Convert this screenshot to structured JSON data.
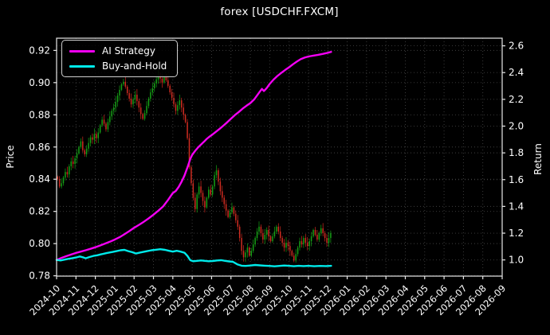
{
  "title": "forex [USDCHF.FXCM]",
  "legend": {
    "items": [
      {
        "label": "AI Strategy",
        "color": "#f400f4"
      },
      {
        "label": "Buy-and-Hold",
        "color": "#00eaea"
      }
    ]
  },
  "axes": {
    "left_label": "Price",
    "right_label": "Return",
    "price_ticks": [
      0.78,
      0.8,
      0.82,
      0.84,
      0.86,
      0.88,
      0.9,
      0.92
    ],
    "return_ticks": [
      1.0,
      1.2,
      1.4,
      1.6,
      1.8,
      2.0,
      2.2,
      2.4,
      2.6
    ],
    "x_tick_labels": [
      "2024-10",
      "2024-11",
      "2024-12",
      "2025-01",
      "2025-02",
      "2025-03",
      "2025-04",
      "2025-05",
      "2025-06",
      "2025-07",
      "2025-08",
      "2025-09",
      "2025-10",
      "2025-11",
      "2025-12",
      "2026-01",
      "2026-02",
      "2026-03",
      "2026-04",
      "2026-05",
      "2026-06",
      "2026-07",
      "2026-08",
      "2026-09"
    ],
    "price_range": [
      0.7798,
      0.9276
    ],
    "return_range": [
      0.879,
      2.657
    ]
  },
  "chart_data": {
    "type": "candlestick",
    "title": "forex [USDCHF.FXCM]",
    "xlabel": "",
    "ylabel_left": "Price",
    "ylabel_right": "Return",
    "grid": true,
    "legend_position": "upper left",
    "x_unit": "months since 2024-10",
    "data_span_months": [
      0,
      14.17
    ],
    "colors": {
      "up": "#15a015",
      "down": "#cf2b20",
      "ai_strategy": "#f400f4",
      "buy_and_hold": "#00eaea",
      "grid": "#3f3f3f",
      "spine": "#e8e8e8",
      "background": "#000000",
      "text": "#ffffff"
    },
    "candles": {
      "per_month": 10,
      "first_open": 0.8415,
      "closes": [
        0.84,
        0.8355,
        0.8375,
        0.841,
        0.8445,
        0.843,
        0.848,
        0.851,
        0.8495,
        0.853,
        0.856,
        0.86,
        0.8635,
        0.858,
        0.8555,
        0.859,
        0.8625,
        0.866,
        0.8645,
        0.868,
        0.8655,
        0.869,
        0.8735,
        0.877,
        0.8745,
        0.871,
        0.8755,
        0.879,
        0.8825,
        0.8845,
        0.888,
        0.892,
        0.8955,
        0.899,
        0.9005,
        0.8975,
        0.8935,
        0.89,
        0.8865,
        0.8895,
        0.8925,
        0.8885,
        0.8845,
        0.8805,
        0.8775,
        0.881,
        0.8855,
        0.89,
        0.894,
        0.8965,
        0.8995,
        0.902,
        0.9045,
        0.9025,
        0.9,
        0.9035,
        0.9015,
        0.898,
        0.894,
        0.8905,
        0.8865,
        0.8825,
        0.886,
        0.889,
        0.8845,
        0.88,
        0.8755,
        0.8655,
        0.8475,
        0.8375,
        0.8285,
        0.8215,
        0.8305,
        0.8355,
        0.8315,
        0.8265,
        0.8225,
        0.8285,
        0.8335,
        0.8305,
        0.8355,
        0.8425,
        0.8455,
        0.8385,
        0.8325,
        0.8285,
        0.8245,
        0.8205,
        0.8165,
        0.8195,
        0.8225,
        0.8185,
        0.8145,
        0.8105,
        0.8035,
        0.7955,
        0.7915,
        0.7945,
        0.7975,
        0.7925,
        0.7955,
        0.7995,
        0.8035,
        0.8075,
        0.8105,
        0.8065,
        0.8025,
        0.8055,
        0.8085,
        0.8045,
        0.8015,
        0.8045,
        0.8075,
        0.8105,
        0.8075,
        0.8035,
        0.8005,
        0.7975,
        0.8005,
        0.7985,
        0.7955,
        0.7925,
        0.7895,
        0.7935,
        0.7975,
        0.8015,
        0.7995,
        0.8035,
        0.8005,
        0.7985,
        0.8015,
        0.8045,
        0.8085,
        0.8055,
        0.8025,
        0.8065,
        0.8095,
        0.8065,
        0.8035,
        0.8005,
        0.8035,
        0.8065
      ]
    },
    "series": [
      {
        "name": "AI Strategy",
        "axis": "return",
        "color": "#f400f4",
        "points": [
          [
            0,
            1.0
          ],
          [
            0.25,
            1.015
          ],
          [
            0.5,
            1.028
          ],
          [
            0.75,
            1.04
          ],
          [
            1,
            1.052
          ],
          [
            1.25,
            1.062
          ],
          [
            1.5,
            1.072
          ],
          [
            1.75,
            1.083
          ],
          [
            2,
            1.095
          ],
          [
            2.25,
            1.108
          ],
          [
            2.5,
            1.122
          ],
          [
            2.75,
            1.136
          ],
          [
            3,
            1.152
          ],
          [
            3.25,
            1.17
          ],
          [
            3.5,
            1.192
          ],
          [
            3.75,
            1.215
          ],
          [
            4,
            1.24
          ],
          [
            4.25,
            1.262
          ],
          [
            4.5,
            1.285
          ],
          [
            4.75,
            1.31
          ],
          [
            5,
            1.338
          ],
          [
            5.25,
            1.368
          ],
          [
            5.5,
            1.4
          ],
          [
            5.75,
            1.448
          ],
          [
            6,
            1.5
          ],
          [
            6.15,
            1.515
          ],
          [
            6.3,
            1.545
          ],
          [
            6.45,
            1.585
          ],
          [
            6.6,
            1.63
          ],
          [
            6.75,
            1.69
          ],
          [
            6.9,
            1.755
          ],
          [
            7,
            1.785
          ],
          [
            7.15,
            1.815
          ],
          [
            7.3,
            1.84
          ],
          [
            7.45,
            1.862
          ],
          [
            7.6,
            1.882
          ],
          [
            7.75,
            1.905
          ],
          [
            7.9,
            1.922
          ],
          [
            8,
            1.932
          ],
          [
            8.2,
            1.955
          ],
          [
            8.4,
            1.978
          ],
          [
            8.6,
            2.002
          ],
          [
            8.8,
            2.028
          ],
          [
            9,
            2.055
          ],
          [
            9.2,
            2.082
          ],
          [
            9.4,
            2.105
          ],
          [
            9.6,
            2.13
          ],
          [
            9.8,
            2.152
          ],
          [
            10,
            2.172
          ],
          [
            10.2,
            2.2
          ],
          [
            10.35,
            2.23
          ],
          [
            10.5,
            2.26
          ],
          [
            10.6,
            2.278
          ],
          [
            10.7,
            2.262
          ],
          [
            10.85,
            2.285
          ],
          [
            11,
            2.315
          ],
          [
            11.2,
            2.348
          ],
          [
            11.4,
            2.375
          ],
          [
            11.6,
            2.398
          ],
          [
            11.8,
            2.42
          ],
          [
            12,
            2.44
          ],
          [
            12.2,
            2.462
          ],
          [
            12.4,
            2.482
          ],
          [
            12.6,
            2.5
          ],
          [
            12.8,
            2.512
          ],
          [
            13,
            2.52
          ],
          [
            13.25,
            2.527
          ],
          [
            13.5,
            2.533
          ],
          [
            13.75,
            2.54
          ],
          [
            14,
            2.548
          ],
          [
            14.17,
            2.555
          ]
        ]
      },
      {
        "name": "Buy-and-Hold",
        "axis": "return",
        "color": "#00eaea",
        "points": [
          [
            0,
            1.0
          ],
          [
            0.2,
            0.996
          ],
          [
            0.4,
            1.002
          ],
          [
            0.6,
            1.008
          ],
          [
            0.8,
            1.012
          ],
          [
            1,
            1.018
          ],
          [
            1.2,
            1.026
          ],
          [
            1.35,
            1.02
          ],
          [
            1.5,
            1.012
          ],
          [
            1.7,
            1.022
          ],
          [
            1.9,
            1.03
          ],
          [
            2.1,
            1.035
          ],
          [
            2.3,
            1.042
          ],
          [
            2.6,
            1.052
          ],
          [
            2.9,
            1.06
          ],
          [
            3.1,
            1.066
          ],
          [
            3.3,
            1.072
          ],
          [
            3.5,
            1.075
          ],
          [
            3.7,
            1.066
          ],
          [
            3.9,
            1.058
          ],
          [
            4.1,
            1.048
          ],
          [
            4.3,
            1.055
          ],
          [
            4.6,
            1.064
          ],
          [
            4.9,
            1.072
          ],
          [
            5.1,
            1.076
          ],
          [
            5.35,
            1.08
          ],
          [
            5.6,
            1.075
          ],
          [
            5.8,
            1.068
          ],
          [
            6,
            1.062
          ],
          [
            6.2,
            1.068
          ],
          [
            6.4,
            1.062
          ],
          [
            6.6,
            1.054
          ],
          [
            6.75,
            1.03
          ],
          [
            6.9,
            0.998
          ],
          [
            7.05,
            0.99
          ],
          [
            7.25,
            0.993
          ],
          [
            7.45,
            0.996
          ],
          [
            7.65,
            0.993
          ],
          [
            7.85,
            0.99
          ],
          [
            8.05,
            0.992
          ],
          [
            8.3,
            0.996
          ],
          [
            8.5,
            0.998
          ],
          [
            8.7,
            0.993
          ],
          [
            8.9,
            0.989
          ],
          [
            9.1,
            0.986
          ],
          [
            9.35,
            0.966
          ],
          [
            9.55,
            0.957
          ],
          [
            9.75,
            0.955
          ],
          [
            10,
            0.958
          ],
          [
            10.25,
            0.962
          ],
          [
            10.5,
            0.959
          ],
          [
            10.75,
            0.957
          ],
          [
            11,
            0.955
          ],
          [
            11.25,
            0.952
          ],
          [
            11.5,
            0.955
          ],
          [
            11.75,
            0.958
          ],
          [
            12,
            0.956
          ],
          [
            12.25,
            0.953
          ],
          [
            12.5,
            0.956
          ],
          [
            12.75,
            0.954
          ],
          [
            13,
            0.956
          ],
          [
            13.3,
            0.953
          ],
          [
            13.6,
            0.955
          ],
          [
            13.9,
            0.954
          ],
          [
            14.17,
            0.956
          ]
        ]
      }
    ]
  }
}
